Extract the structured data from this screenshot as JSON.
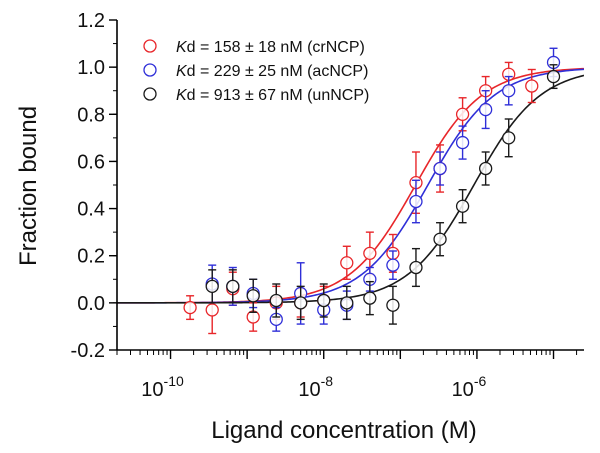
{
  "chart_data": {
    "type": "scatter",
    "xscale": "log",
    "xlabel": "Ligand concentration (M)",
    "ylabel": "Fraction bound",
    "xlim": [
      2e-11,
      2.5e-05
    ],
    "ylim": [
      -0.2,
      1.2
    ],
    "x_ticks": [
      {
        "value": 1e-10,
        "base": "10",
        "exp": "-10"
      },
      {
        "value": 1e-08,
        "base": "10",
        "exp": "-8"
      },
      {
        "value": 1e-06,
        "base": "10",
        "exp": "-6"
      }
    ],
    "y_ticks": [
      {
        "value": -0.2,
        "label": "-0.2"
      },
      {
        "value": 0.0,
        "label": "0.0"
      },
      {
        "value": 0.2,
        "label": "0.2"
      },
      {
        "value": 0.4,
        "label": "0.4"
      },
      {
        "value": 0.6,
        "label": "0.6"
      },
      {
        "value": 0.8,
        "label": "0.8"
      },
      {
        "value": 1.0,
        "label": "1.0"
      },
      {
        "value": 1.2,
        "label": "1.2"
      }
    ],
    "legend_position": "top-left",
    "series": [
      {
        "legend_italic": "K",
        "legend_text": "d = 158 ± 18 nM (crNCP)",
        "color": "#e8262a",
        "kd": 1.58e-07,
        "points": [
          {
            "x": 1.8e-10,
            "y": -0.02,
            "err": 0.05
          },
          {
            "x": 3.5e-10,
            "y": -0.03,
            "err": 0.1
          },
          {
            "x": 6.5e-10,
            "y": 0.06,
            "err": 0.07
          },
          {
            "x": 1.2e-09,
            "y": -0.06,
            "err": 0.06
          },
          {
            "x": 2.4e-09,
            "y": 0.0,
            "err": 0.07
          },
          {
            "x": 5e-09,
            "y": 0.0,
            "err": 0.06
          },
          {
            "x": 1e-08,
            "y": 0.01,
            "err": 0.06
          },
          {
            "x": 2e-08,
            "y": 0.17,
            "err": 0.07
          },
          {
            "x": 4e-08,
            "y": 0.21,
            "err": 0.09
          },
          {
            "x": 8e-08,
            "y": 0.21,
            "err": 0.08
          },
          {
            "x": 1.6e-07,
            "y": 0.51,
            "err": 0.13
          },
          {
            "x": 3.3e-07,
            "y": 0.57,
            "err": 0.1
          },
          {
            "x": 6.5e-07,
            "y": 0.8,
            "err": 0.07
          },
          {
            "x": 1.3e-06,
            "y": 0.9,
            "err": 0.06
          },
          {
            "x": 2.6e-06,
            "y": 0.97,
            "err": 0.05
          },
          {
            "x": 5.2e-06,
            "y": 0.92,
            "err": 0.07
          }
        ]
      },
      {
        "legend_italic": "K",
        "legend_text": "d = 229 ± 25 nM (acNCP)",
        "color": "#2f2fd8",
        "kd": 2.29e-07,
        "points": [
          {
            "x": 3.5e-10,
            "y": 0.08,
            "err": 0.08
          },
          {
            "x": 6.5e-10,
            "y": 0.07,
            "err": 0.08
          },
          {
            "x": 1.2e-09,
            "y": 0.04,
            "err": 0.06
          },
          {
            "x": 2.4e-09,
            "y": -0.07,
            "err": 0.05
          },
          {
            "x": 5e-09,
            "y": 0.04,
            "err": 0.13
          },
          {
            "x": 1e-08,
            "y": -0.03,
            "err": 0.06
          },
          {
            "x": 2e-08,
            "y": -0.01,
            "err": 0.06
          },
          {
            "x": 4e-08,
            "y": 0.1,
            "err": 0.05
          },
          {
            "x": 8e-08,
            "y": 0.16,
            "err": 0.06
          },
          {
            "x": 1.6e-07,
            "y": 0.43,
            "err": 0.09
          },
          {
            "x": 3.3e-07,
            "y": 0.57,
            "err": 0.07
          },
          {
            "x": 6.5e-07,
            "y": 0.68,
            "err": 0.07
          },
          {
            "x": 1.3e-06,
            "y": 0.82,
            "err": 0.08
          },
          {
            "x": 2.6e-06,
            "y": 0.9,
            "err": 0.06
          },
          {
            "x": 1e-05,
            "y": 1.02,
            "err": 0.06
          }
        ]
      },
      {
        "legend_italic": "K",
        "legend_text": "d = 913 ± 67 nM (unNCP)",
        "color": "#1a1a1a",
        "kd": 9.13e-07,
        "points": [
          {
            "x": 3.5e-10,
            "y": 0.07,
            "err": 0.07
          },
          {
            "x": 6.5e-10,
            "y": 0.07,
            "err": 0.07
          },
          {
            "x": 1.2e-09,
            "y": 0.03,
            "err": 0.07
          },
          {
            "x": 2.4e-09,
            "y": 0.01,
            "err": 0.07
          },
          {
            "x": 5e-09,
            "y": 0.0,
            "err": 0.07
          },
          {
            "x": 1e-08,
            "y": 0.01,
            "err": 0.07
          },
          {
            "x": 2e-08,
            "y": 0.0,
            "err": 0.07
          },
          {
            "x": 4e-08,
            "y": 0.02,
            "err": 0.07
          },
          {
            "x": 8e-08,
            "y": -0.01,
            "err": 0.08
          },
          {
            "x": 1.6e-07,
            "y": 0.15,
            "err": 0.08
          },
          {
            "x": 3.3e-07,
            "y": 0.27,
            "err": 0.07
          },
          {
            "x": 6.5e-07,
            "y": 0.41,
            "err": 0.07
          },
          {
            "x": 1.3e-06,
            "y": 0.57,
            "err": 0.07
          },
          {
            "x": 2.6e-06,
            "y": 0.7,
            "err": 0.08
          },
          {
            "x": 1e-05,
            "y": 0.96,
            "err": 0.05
          }
        ]
      }
    ]
  }
}
